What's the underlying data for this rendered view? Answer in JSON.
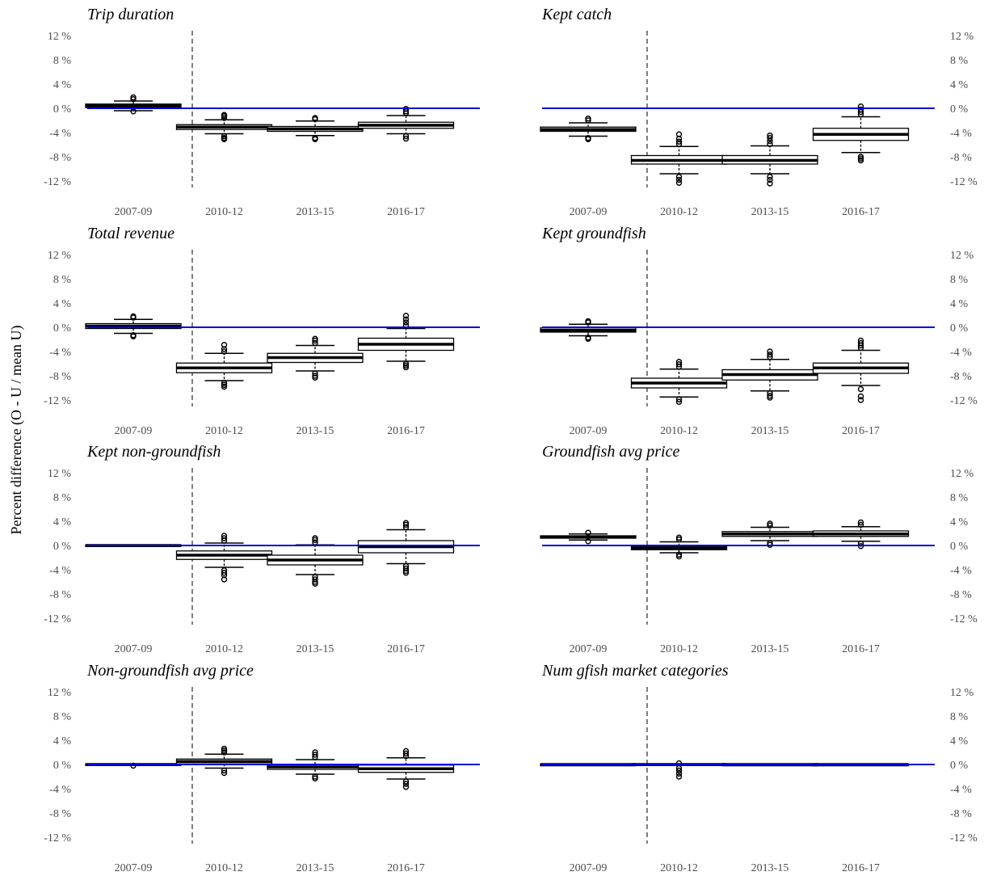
{
  "chart_data": {
    "type": "box",
    "ylabel": "Percent difference (O - U / mean U)",
    "ylim": [
      -13,
      13
    ],
    "yticks": [
      12,
      8,
      4,
      0,
      -4,
      -8,
      -12
    ],
    "ytick_suffix": " %",
    "categories": [
      "2007-09",
      "2010-12",
      "2013-15",
      "2016-17"
    ],
    "reference_line": {
      "value": 0,
      "color": "#0000dd"
    },
    "divider_after_category": "2007-09",
    "panels": [
      {
        "title": "Trip duration",
        "boxes": [
          {
            "category": "2007-09",
            "q1": 0.1,
            "median": 0.4,
            "q3": 0.7,
            "whisker_low": -0.4,
            "whisker_high": 1.2,
            "outliers": [
              -0.5,
              1.5,
              1.8
            ]
          },
          {
            "category": "2010-12",
            "q1": -3.5,
            "median": -3.1,
            "q3": -2.7,
            "whisker_low": -4.2,
            "whisker_high": -1.9,
            "outliers": [
              -4.6,
              -4.9,
              -5.1,
              -1.6,
              -1.3,
              -1.1
            ]
          },
          {
            "category": "2013-15",
            "q1": -3.8,
            "median": -3.4,
            "q3": -3.0,
            "whisker_low": -4.5,
            "whisker_high": -2.1,
            "outliers": [
              -4.9,
              -5.1,
              -1.8,
              -1.6
            ]
          },
          {
            "category": "2016-17",
            "q1": -3.3,
            "median": -2.8,
            "q3": -2.3,
            "whisker_low": -4.2,
            "whisker_high": -1.2,
            "outliers": [
              -4.6,
              -5.0,
              -0.8,
              -0.5,
              -0.1
            ]
          }
        ]
      },
      {
        "title": "Kept catch",
        "boxes": [
          {
            "category": "2007-09",
            "q1": -3.8,
            "median": -3.5,
            "q3": -3.1,
            "whisker_low": -4.6,
            "whisker_high": -2.4,
            "outliers": [
              -4.9,
              -5.1,
              -2.0,
              -1.7
            ]
          },
          {
            "category": "2010-12",
            "q1": -9.2,
            "median": -8.6,
            "q3": -7.8,
            "whisker_low": -10.8,
            "whisker_high": -6.3,
            "outliers": [
              -11.3,
              -11.8,
              -12.3,
              -5.9,
              -5.5,
              -5.0,
              -4.3
            ]
          },
          {
            "category": "2013-15",
            "q1": -9.2,
            "median": -8.6,
            "q3": -7.8,
            "whisker_low": -10.8,
            "whisker_high": -6.2,
            "outliers": [
              -11.3,
              -11.8,
              -12.4,
              -5.9,
              -5.4,
              -4.9,
              -4.5
            ]
          },
          {
            "category": "2016-17",
            "q1": -5.3,
            "median": -4.3,
            "q3": -3.3,
            "whisker_low": -7.3,
            "whisker_high": -1.4,
            "outliers": [
              -8.0,
              -8.3,
              -8.6,
              -1.0,
              -0.6,
              -0.2,
              0.3
            ]
          }
        ]
      },
      {
        "title": "Total revenue",
        "boxes": [
          {
            "category": "2007-09",
            "q1": -0.2,
            "median": 0.2,
            "q3": 0.6,
            "whisker_low": -1.0,
            "whisker_high": 1.3,
            "outliers": [
              -1.3,
              -1.5,
              1.6,
              1.8
            ]
          },
          {
            "category": "2010-12",
            "q1": -7.5,
            "median": -6.7,
            "q3": -5.9,
            "whisker_low": -8.8,
            "whisker_high": -4.3,
            "outliers": [
              -9.2,
              -9.5,
              -9.8,
              -4.0,
              -3.6,
              -2.9
            ]
          },
          {
            "category": "2013-15",
            "q1": -5.8,
            "median": -5.0,
            "q3": -4.3,
            "whisker_low": -7.2,
            "whisker_high": -3.0,
            "outliers": [
              -7.6,
              -8.0,
              -8.3,
              -2.6,
              -2.2,
              -1.9
            ]
          },
          {
            "category": "2016-17",
            "q1": -3.8,
            "median": -2.8,
            "q3": -1.8,
            "whisker_low": -5.6,
            "whisker_high": -0.2,
            "outliers": [
              -6.0,
              -6.3,
              -6.6,
              0.3,
              0.8,
              1.3,
              1.9
            ]
          }
        ]
      },
      {
        "title": "Kept groundfish",
        "boxes": [
          {
            "category": "2007-09",
            "q1": -0.8,
            "median": -0.5,
            "q3": -0.1,
            "whisker_low": -1.4,
            "whisker_high": 0.5,
            "outliers": [
              -1.7,
              -1.9,
              0.8,
              1.0
            ]
          },
          {
            "category": "2010-12",
            "q1": -10.0,
            "median": -9.2,
            "q3": -8.4,
            "whisker_low": -11.5,
            "whisker_high": -6.9,
            "outliers": [
              -11.9,
              -12.3,
              -6.5,
              -6.1,
              -5.7
            ]
          },
          {
            "category": "2013-15",
            "q1": -8.7,
            "median": -7.8,
            "q3": -7.0,
            "whisker_low": -10.5,
            "whisker_high": -5.3,
            "outliers": [
              -10.9,
              -11.3,
              -11.6,
              -4.9,
              -4.5,
              -4.0
            ]
          },
          {
            "category": "2016-17",
            "q1": -7.6,
            "median": -6.7,
            "q3": -5.9,
            "whisker_low": -9.6,
            "whisker_high": -3.8,
            "outliers": [
              -10.2,
              -11.4,
              -12.0,
              -3.4,
              -3.0,
              -2.6,
              -2.2
            ]
          }
        ]
      },
      {
        "title": "Kept non-groundfish",
        "boxes": [
          {
            "category": "2007-09",
            "q1": -0.1,
            "median": 0.0,
            "q3": 0.1,
            "whisker_low": -0.1,
            "whisker_high": 0.1,
            "outliers": []
          },
          {
            "category": "2010-12",
            "q1": -2.3,
            "median": -1.6,
            "q3": -0.9,
            "whisker_low": -3.6,
            "whisker_high": 0.4,
            "outliers": [
              -4.1,
              -4.5,
              -4.9,
              -5.6,
              0.8,
              1.2,
              1.6
            ]
          },
          {
            "category": "2013-15",
            "q1": -3.2,
            "median": -2.4,
            "q3": -1.6,
            "whisker_low": -4.8,
            "whisker_high": 0.1,
            "outliers": [
              -5.2,
              -5.6,
              -6.0,
              -6.3,
              0.5,
              0.9,
              1.2
            ]
          },
          {
            "category": "2016-17",
            "q1": -1.2,
            "median": -0.2,
            "q3": 0.8,
            "whisker_low": -3.0,
            "whisker_high": 2.6,
            "outliers": [
              -3.4,
              -3.8,
              -4.2,
              -4.5,
              3.0,
              3.4,
              3.7
            ]
          }
        ]
      },
      {
        "title": "Groundfish avg price",
        "boxes": [
          {
            "category": "2007-09",
            "q1": 1.2,
            "median": 1.4,
            "q3": 1.6,
            "whisker_low": 0.9,
            "whisker_high": 1.9,
            "outliers": [
              0.7,
              2.1
            ]
          },
          {
            "category": "2010-12",
            "q1": -0.7,
            "median": -0.4,
            "q3": -0.1,
            "whisker_low": -1.2,
            "whisker_high": 0.6,
            "outliers": [
              -1.5,
              -1.8,
              1.0,
              1.3
            ]
          },
          {
            "category": "2013-15",
            "q1": 1.5,
            "median": 1.9,
            "q3": 2.3,
            "whisker_low": 0.8,
            "whisker_high": 3.0,
            "outliers": [
              0.4,
              0.1,
              3.3,
              3.6
            ]
          },
          {
            "category": "2016-17",
            "q1": 1.5,
            "median": 1.9,
            "q3": 2.4,
            "whisker_low": 0.7,
            "whisker_high": 3.1,
            "outliers": [
              0.3,
              -0.1,
              3.4,
              3.8
            ]
          }
        ]
      },
      {
        "title": "Non-groundfish avg price",
        "boxes": [
          {
            "category": "2007-09",
            "q1": -0.1,
            "median": 0.0,
            "q3": 0.1,
            "whisker_low": -0.1,
            "whisker_high": 0.1,
            "outliers": [
              -0.2
            ]
          },
          {
            "category": "2010-12",
            "q1": 0.1,
            "median": 0.5,
            "q3": 0.9,
            "whisker_low": -0.6,
            "whisker_high": 1.7,
            "outliers": [
              -1.0,
              -1.4,
              2.0,
              2.3,
              2.6
            ]
          },
          {
            "category": "2013-15",
            "q1": -0.8,
            "median": -0.4,
            "q3": 0.0,
            "whisker_low": -1.6,
            "whisker_high": 0.8,
            "outliers": [
              -2.0,
              -2.3,
              1.2,
              1.6,
              2.0
            ]
          },
          {
            "category": "2016-17",
            "q1": -1.3,
            "median": -0.7,
            "q3": -0.1,
            "whisker_low": -2.4,
            "whisker_high": 1.1,
            "outliers": [
              -2.8,
              -3.2,
              -3.7,
              1.4,
              1.8,
              2.2
            ]
          }
        ]
      },
      {
        "title": "Num gfish market categories",
        "boxes": [
          {
            "category": "2007-09",
            "q1": -0.05,
            "median": 0.0,
            "q3": 0.05,
            "whisker_low": -0.05,
            "whisker_high": 0.05,
            "outliers": []
          },
          {
            "category": "2010-12",
            "q1": -0.1,
            "median": 0.0,
            "q3": 0.1,
            "whisker_low": -0.1,
            "whisker_high": 0.1,
            "outliers": [
              -0.6,
              -1.0,
              -1.5,
              -2.0,
              0.2
            ]
          },
          {
            "category": "2013-15",
            "q1": -0.05,
            "median": 0.0,
            "q3": 0.05,
            "whisker_low": -0.05,
            "whisker_high": 0.05,
            "outliers": []
          },
          {
            "category": "2016-17",
            "q1": -0.05,
            "median": 0.0,
            "q3": 0.05,
            "whisker_low": -0.05,
            "whisker_high": 0.05,
            "outliers": []
          }
        ]
      }
    ]
  }
}
